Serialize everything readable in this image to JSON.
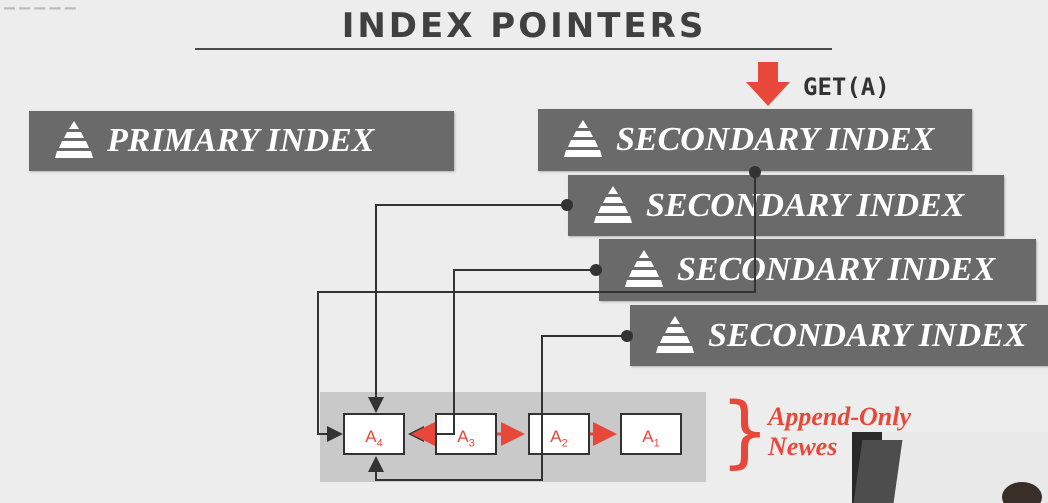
{
  "slide": {
    "title": "INDEX POINTERS",
    "get_label": "GET(A)",
    "primary_index_label": "PRIMARY INDEX",
    "secondary_index_labels": [
      "SECONDARY INDEX",
      "SECONDARY INDEX",
      "SECONDARY INDEX",
      "SECONDARY INDEX"
    ],
    "versions": [
      {
        "base": "A",
        "sub": "4"
      },
      {
        "base": "A",
        "sub": "3"
      },
      {
        "base": "A",
        "sub": "2"
      },
      {
        "base": "A",
        "sub": "1"
      }
    ],
    "append_only_line1": "Append-Only",
    "append_only_line2": "Newes"
  },
  "colors": {
    "accent_red": "#e8483a",
    "panel_gray": "#6a6a6a",
    "background": "#ededed"
  }
}
